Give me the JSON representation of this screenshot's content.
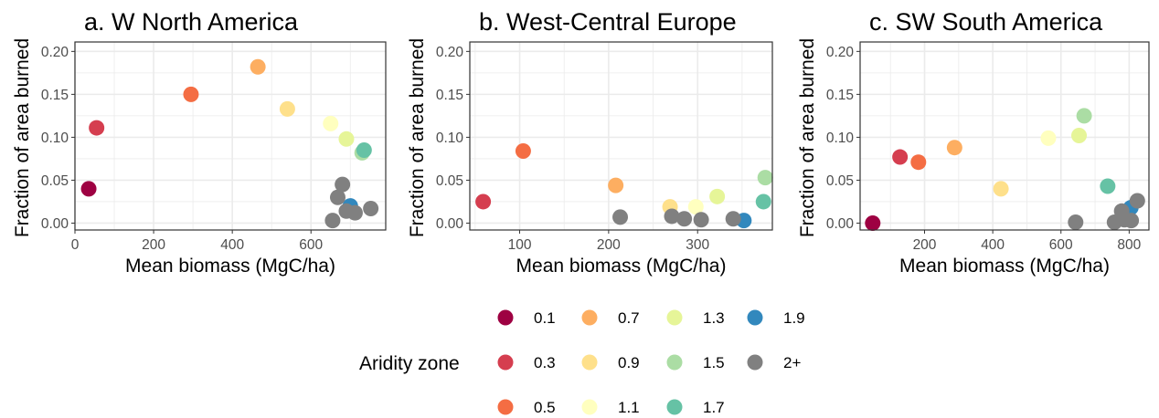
{
  "chart_data": [
    {
      "type": "scatter",
      "title": "a. W North America",
      "xlabel": "Mean biomass (MgC/ha)",
      "ylabel": "Fraction of area burned",
      "xlim": [
        0,
        790
      ],
      "ylim": [
        -0.008,
        0.211
      ],
      "xticks": [
        {
          "v": 0,
          "label": "0"
        },
        {
          "v": 200,
          "label": "200"
        },
        {
          "v": 400,
          "label": "400"
        },
        {
          "v": 600,
          "label": "600"
        }
      ],
      "yticks": [
        {
          "v": 0,
          "label": "0.00"
        },
        {
          "v": 0.05,
          "label": "0.05"
        },
        {
          "v": 0.1,
          "label": "0.10"
        },
        {
          "v": 0.15,
          "label": "0.15"
        },
        {
          "v": 0.2,
          "label": "0.20"
        }
      ],
      "grid": true,
      "points": [
        {
          "x": 35,
          "y": 0.04,
          "zone": "0.1"
        },
        {
          "x": 55,
          "y": 0.111,
          "zone": "0.3"
        },
        {
          "x": 295,
          "y": 0.15,
          "zone": "0.5"
        },
        {
          "x": 465,
          "y": 0.182,
          "zone": "0.7"
        },
        {
          "x": 540,
          "y": 0.133,
          "zone": "0.9"
        },
        {
          "x": 650,
          "y": 0.116,
          "zone": "1.1"
        },
        {
          "x": 690,
          "y": 0.098,
          "zone": "1.3"
        },
        {
          "x": 730,
          "y": 0.082,
          "zone": "1.5"
        },
        {
          "x": 735,
          "y": 0.085,
          "zone": "1.7"
        },
        {
          "x": 700,
          "y": 0.02,
          "zone": "1.9"
        },
        {
          "x": 655,
          "y": 0.003,
          "zone": "2+"
        },
        {
          "x": 668,
          "y": 0.03,
          "zone": "2+"
        },
        {
          "x": 680,
          "y": 0.045,
          "zone": "2+"
        },
        {
          "x": 690,
          "y": 0.014,
          "zone": "2+"
        },
        {
          "x": 712,
          "y": 0.012,
          "zone": "2+"
        },
        {
          "x": 752,
          "y": 0.017,
          "zone": "2+"
        }
      ]
    },
    {
      "type": "scatter",
      "title": "b. West-Central Europe",
      "xlabel": "Mean biomass (MgC/ha)",
      "ylabel": "Fraction of area burned",
      "xlim": [
        44,
        384
      ],
      "ylim": [
        -0.008,
        0.211
      ],
      "xticks": [
        {
          "v": 100,
          "label": "100"
        },
        {
          "v": 200,
          "label": "200"
        },
        {
          "v": 300,
          "label": "300"
        }
      ],
      "yticks": [
        {
          "v": 0,
          "label": "0.00"
        },
        {
          "v": 0.05,
          "label": "0.05"
        },
        {
          "v": 0.1,
          "label": "0.10"
        },
        {
          "v": 0.15,
          "label": "0.15"
        },
        {
          "v": 0.2,
          "label": "0.20"
        }
      ],
      "grid": true,
      "points": [
        {
          "x": 59,
          "y": 0.025,
          "zone": "0.3"
        },
        {
          "x": 104,
          "y": 0.084,
          "zone": "0.5"
        },
        {
          "x": 208,
          "y": 0.044,
          "zone": "0.7"
        },
        {
          "x": 269,
          "y": 0.019,
          "zone": "0.9"
        },
        {
          "x": 298,
          "y": 0.019,
          "zone": "1.1"
        },
        {
          "x": 322,
          "y": 0.031,
          "zone": "1.3"
        },
        {
          "x": 376,
          "y": 0.053,
          "zone": "1.5"
        },
        {
          "x": 374,
          "y": 0.025,
          "zone": "1.7"
        },
        {
          "x": 352,
          "y": 0.003,
          "zone": "1.9"
        },
        {
          "x": 213,
          "y": 0.007,
          "zone": "2+"
        },
        {
          "x": 271,
          "y": 0.008,
          "zone": "2+"
        },
        {
          "x": 285,
          "y": 0.005,
          "zone": "2+"
        },
        {
          "x": 304,
          "y": 0.004,
          "zone": "2+"
        },
        {
          "x": 340,
          "y": 0.005,
          "zone": "2+"
        }
      ]
    },
    {
      "type": "scatter",
      "title": "c. SW South America",
      "xlabel": "Mean biomass (MgC/ha)",
      "ylabel": "Fraction of area burned",
      "xlim": [
        11,
        858
      ],
      "ylim": [
        -0.008,
        0.211
      ],
      "xticks": [
        {
          "v": 200,
          "label": "200"
        },
        {
          "v": 400,
          "label": "400"
        },
        {
          "v": 600,
          "label": "600"
        },
        {
          "v": 800,
          "label": "800"
        }
      ],
      "yticks": [
        {
          "v": 0,
          "label": "0.00"
        },
        {
          "v": 0.05,
          "label": "0.05"
        },
        {
          "v": 0.1,
          "label": "0.10"
        },
        {
          "v": 0.15,
          "label": "0.15"
        },
        {
          "v": 0.2,
          "label": "0.20"
        }
      ],
      "grid": true,
      "points": [
        {
          "x": 48,
          "y": 0.0,
          "zone": "0.1"
        },
        {
          "x": 128,
          "y": 0.077,
          "zone": "0.3"
        },
        {
          "x": 182,
          "y": 0.071,
          "zone": "0.5"
        },
        {
          "x": 288,
          "y": 0.088,
          "zone": "0.7"
        },
        {
          "x": 424,
          "y": 0.04,
          "zone": "0.9"
        },
        {
          "x": 563,
          "y": 0.099,
          "zone": "1.1"
        },
        {
          "x": 653,
          "y": 0.102,
          "zone": "1.3"
        },
        {
          "x": 668,
          "y": 0.125,
          "zone": "1.5"
        },
        {
          "x": 737,
          "y": 0.043,
          "zone": "1.7"
        },
        {
          "x": 805,
          "y": 0.018,
          "zone": "1.9"
        },
        {
          "x": 643,
          "y": 0.001,
          "zone": "2+"
        },
        {
          "x": 757,
          "y": 0.001,
          "zone": "2+"
        },
        {
          "x": 778,
          "y": 0.014,
          "zone": "2+"
        },
        {
          "x": 786,
          "y": 0.004,
          "zone": "2+"
        },
        {
          "x": 806,
          "y": 0.003,
          "zone": "2+"
        },
        {
          "x": 824,
          "y": 0.026,
          "zone": "2+"
        }
      ]
    }
  ],
  "legend": {
    "title": "Aridity zone",
    "position": "bottom",
    "items": [
      {
        "label": "0.1",
        "color": "#9e0142"
      },
      {
        "label": "0.3",
        "color": "#d53e4f"
      },
      {
        "label": "0.5",
        "color": "#f46d43"
      },
      {
        "label": "0.7",
        "color": "#fdae61"
      },
      {
        "label": "0.9",
        "color": "#fee08b"
      },
      {
        "label": "1.1",
        "color": "#ffffbf"
      },
      {
        "label": "1.3",
        "color": "#e6f598"
      },
      {
        "label": "1.5",
        "color": "#abdda4"
      },
      {
        "label": "1.7",
        "color": "#66c2a5"
      },
      {
        "label": "1.9",
        "color": "#3288bd"
      },
      {
        "label": "2+",
        "color": "#808080"
      }
    ]
  },
  "colors": {
    "panel_border": "#333333",
    "grid": "#ebebeb",
    "tick_text": "#4d4d4d"
  }
}
